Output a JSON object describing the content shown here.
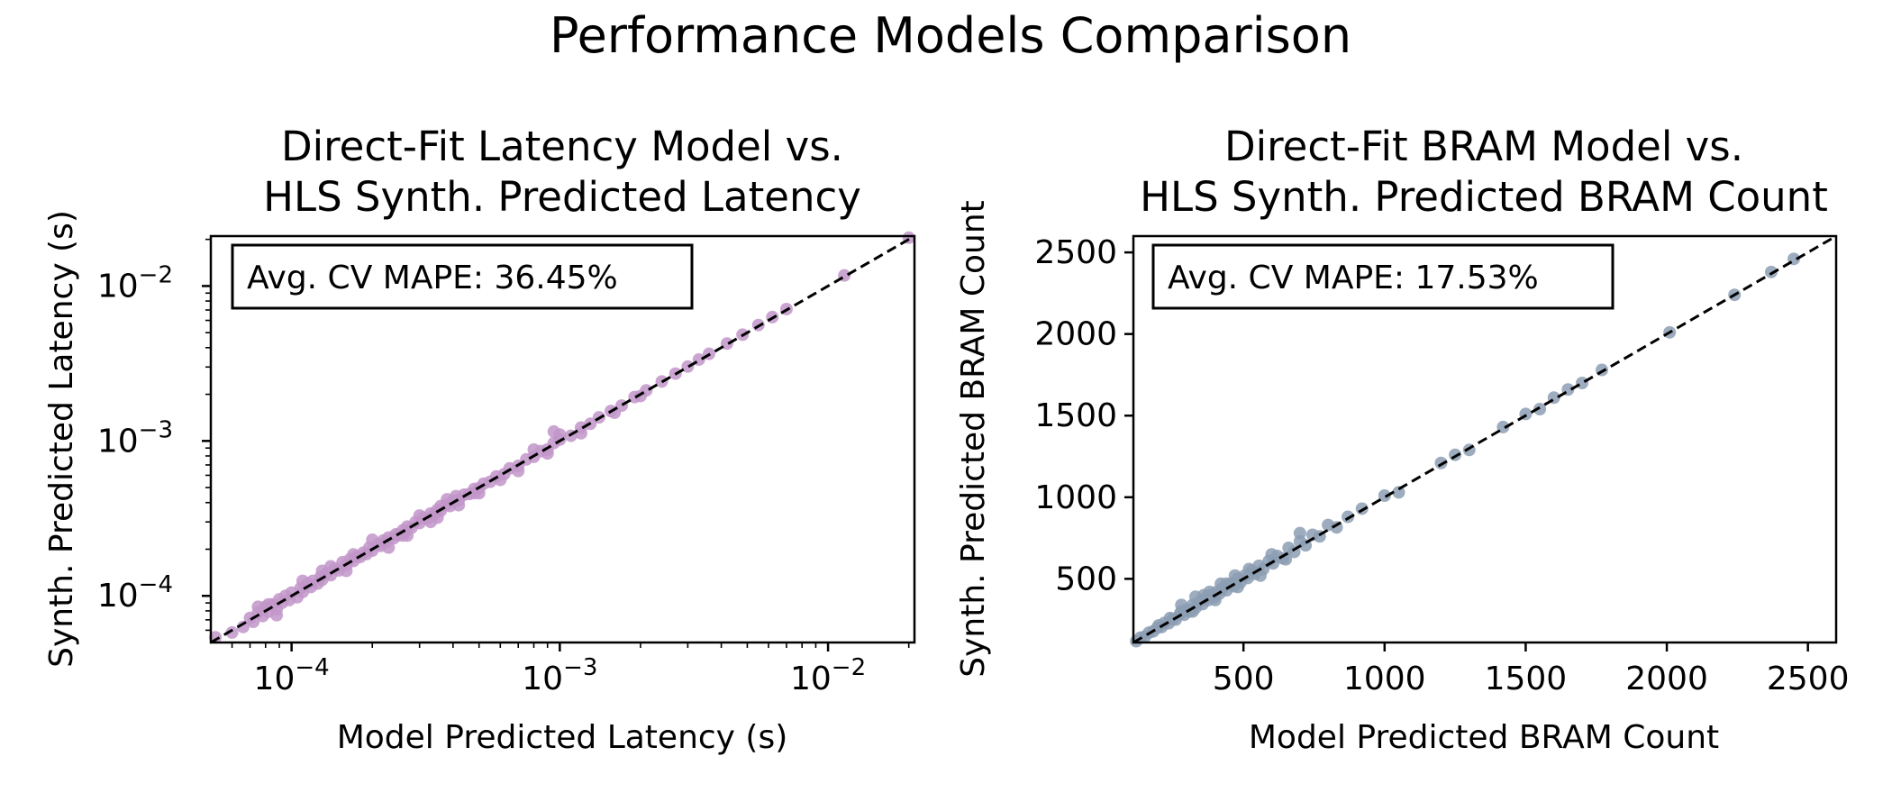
{
  "figure": {
    "suptitle": "Performance Models Comparison"
  },
  "chart_data": [
    {
      "type": "scatter",
      "title": [
        "Direct-Fit Latency Model vs.",
        "HLS Synth. Predicted Latency"
      ],
      "xlabel": "Model Predicted Latency (s)",
      "ylabel": "Synth. Predicted Latency (s)",
      "xscale": "log",
      "yscale": "log",
      "xlim": [
        5e-05,
        0.021
      ],
      "ylim": [
        5e-05,
        0.021
      ],
      "xticks": [
        {
          "value": 0.0001,
          "base": "10",
          "exp": "−4"
        },
        {
          "value": 0.001,
          "base": "10",
          "exp": "−3"
        },
        {
          "value": 0.01,
          "base": "10",
          "exp": "−2"
        }
      ],
      "yticks": [
        {
          "value": 0.0001,
          "base": "10",
          "exp": "−4"
        },
        {
          "value": 0.001,
          "base": "10",
          "exp": "−3"
        },
        {
          "value": 0.01,
          "base": "10",
          "exp": "−2"
        }
      ],
      "annotation": "Avg. CV MAPE: 36.45%",
      "reference_line": "y = x",
      "color": "#c295c9",
      "grid": false,
      "points": [
        [
          5.2e-05,
          5.4e-05
        ],
        [
          6e-05,
          5.8e-05
        ],
        [
          6.6e-05,
          6.3e-05
        ],
        [
          7e-05,
          7.2e-05
        ],
        [
          7.2e-05,
          6.8e-05
        ],
        [
          7.5e-05,
          7.8e-05
        ],
        [
          7.8e-05,
          7.4e-05
        ],
        [
          8e-05,
          8.5e-05
        ],
        [
          8.2e-05,
          7.9e-05
        ],
        [
          8.5e-05,
          8.8e-05
        ],
        [
          8.8e-05,
          8.2e-05
        ],
        [
          9e-05,
          9.5e-05
        ],
        [
          9.2e-05,
          9e-05
        ],
        [
          9.5e-05,
          0.0001
        ],
        [
          9.8e-05,
          9.4e-05
        ],
        [
          0.0001,
          0.000105
        ],
        [
          0.000105,
          9.8e-05
        ],
        [
          0.000108,
          0.000112
        ],
        [
          0.00011,
          0.000106
        ],
        [
          0.000115,
          0.00012
        ],
        [
          0.000118,
          0.000114
        ],
        [
          0.00012,
          0.000125
        ],
        [
          0.000125,
          0.00012
        ],
        [
          0.000128,
          0.000132
        ],
        [
          0.00013,
          0.000127
        ],
        [
          0.000135,
          0.00014
        ],
        [
          0.00014,
          0.000136
        ],
        [
          0.000145,
          0.00015
        ],
        [
          0.00015,
          0.000146
        ],
        [
          0.000155,
          0.000165
        ],
        [
          0.00016,
          0.000158
        ],
        [
          0.000165,
          0.000172
        ],
        [
          0.00017,
          0.000168
        ],
        [
          0.000175,
          0.00018
        ],
        [
          0.00018,
          0.000178
        ],
        [
          0.000185,
          0.00019
        ],
        [
          0.00019,
          0.000186
        ],
        [
          0.000195,
          0.000205
        ],
        [
          0.0002,
          0.000196
        ],
        [
          0.00021,
          0.000215
        ],
        [
          0.000215,
          0.00021
        ],
        [
          0.00022,
          0.000228
        ],
        [
          0.000225,
          0.000222
        ],
        [
          0.00023,
          0.000238
        ],
        [
          0.00024,
          0.000235
        ],
        [
          0.000245,
          0.00025
        ],
        [
          0.00025,
          0.000246
        ],
        [
          0.00026,
          0.000265
        ],
        [
          0.000265,
          0.00026
        ],
        [
          0.00027,
          0.00028
        ],
        [
          0.00028,
          0.000275
        ],
        [
          0.00029,
          0.0003
        ],
        [
          0.0003,
          0.000295
        ],
        [
          0.00031,
          0.00032
        ],
        [
          0.00032,
          0.000315
        ],
        [
          0.00033,
          0.00034
        ],
        [
          0.00034,
          0.000335
        ],
        [
          0.00035,
          0.00036
        ],
        [
          0.00036,
          0.000355
        ],
        [
          0.000375,
          0.000385
        ],
        [
          0.00039,
          0.00038
        ],
        [
          0.0004,
          0.00041
        ],
        [
          0.00042,
          0.000415
        ],
        [
          0.00044,
          0.00045
        ],
        [
          0.00046,
          0.000455
        ],
        [
          0.00048,
          0.00049
        ],
        [
          0.0005,
          0.000495
        ],
        [
          0.00052,
          0.00053
        ],
        [
          0.00055,
          0.000545
        ],
        [
          0.00058,
          0.00059
        ],
        [
          0.00062,
          0.00061
        ],
        [
          0.00065,
          0.000665
        ],
        [
          0.0007,
          0.00069
        ],
        [
          0.00075,
          0.00076
        ],
        [
          0.0008,
          0.00079
        ],
        [
          0.00085,
          0.00086
        ],
        [
          0.0009,
          0.00088
        ],
        [
          0.00095,
          0.00097
        ],
        [
          0.001,
          0.00102
        ],
        [
          0.0011,
          0.00108
        ],
        [
          0.0012,
          0.00122
        ],
        [
          0.0013,
          0.00129
        ],
        [
          0.0014,
          0.00142
        ],
        [
          0.00155,
          0.00156
        ],
        [
          0.0017,
          0.00169
        ],
        [
          0.0019,
          0.00192
        ],
        [
          0.0021,
          0.00212
        ],
        [
          0.0024,
          0.00242
        ],
        [
          0.0027,
          0.00272
        ],
        [
          0.003,
          0.00302
        ],
        [
          0.0033,
          0.00335
        ],
        [
          0.0036,
          0.00365
        ],
        [
          0.0042,
          0.00425
        ],
        [
          0.0048,
          0.00485
        ],
        [
          0.0055,
          0.0056
        ],
        [
          0.0062,
          0.0063
        ],
        [
          0.007,
          0.0071
        ],
        [
          0.0115,
          0.0117
        ],
        [
          0.02,
          0.0205
        ],
        [
          8.8e-05,
          7.5e-05
        ],
        [
          0.00011,
          0.000125
        ],
        [
          0.00014,
          0.000155
        ],
        [
          0.00016,
          0.000145
        ],
        [
          0.0002,
          0.00023
        ],
        [
          0.00023,
          0.000205
        ],
        [
          0.00027,
          0.000245
        ],
        [
          0.0003,
          0.00033
        ],
        [
          0.00033,
          0.0003
        ],
        [
          0.00038,
          0.00042
        ],
        [
          0.00042,
          0.000385
        ],
        [
          0.0005,
          0.00046
        ],
        [
          0.0006,
          0.00056
        ],
        [
          0.0007,
          0.00064
        ],
        [
          0.0008,
          0.00088
        ],
        [
          0.0009,
          0.00083
        ],
        [
          0.001,
          0.0011
        ],
        [
          0.0012,
          0.00112
        ],
        [
          0.0016,
          0.00152
        ],
        [
          0.002,
          0.00195
        ],
        [
          0.00013,
          0.000145
        ],
        [
          0.00017,
          0.000185
        ],
        [
          0.00026,
          0.000245
        ],
        [
          0.00036,
          0.00038
        ],
        [
          0.00048,
          0.00046
        ],
        [
          7.5e-05,
          8.5e-05
        ],
        [
          8.2e-05,
          8.8e-05
        ],
        [
          0.00035,
          0.00032
        ],
        [
          0.00041,
          0.00044
        ],
        [
          0.00095,
          0.00115
        ]
      ]
    },
    {
      "type": "scatter",
      "title": [
        "Direct-Fit BRAM Model vs.",
        "HLS Synth. Predicted BRAM Count"
      ],
      "xlabel": "Model Predicted BRAM Count",
      "ylabel": "Synth. Predicted BRAM Count",
      "xscale": "linear",
      "yscale": "linear",
      "xlim": [
        110,
        2600
      ],
      "ylim": [
        110,
        2600
      ],
      "xticks": [
        500,
        1000,
        1500,
        2000,
        2500
      ],
      "yticks": [
        500,
        1000,
        1500,
        2000,
        2500
      ],
      "annotation": "Avg. CV MAPE: 17.53%",
      "reference_line": "y = x",
      "color": "#8c9db3",
      "grid": false,
      "points": [
        [
          120,
          118
        ],
        [
          135,
          140
        ],
        [
          150,
          145
        ],
        [
          165,
          170
        ],
        [
          180,
          178
        ],
        [
          195,
          200
        ],
        [
          210,
          205
        ],
        [
          220,
          230
        ],
        [
          235,
          228
        ],
        [
          250,
          255
        ],
        [
          260,
          250
        ],
        [
          275,
          285
        ],
        [
          290,
          280
        ],
        [
          300,
          310
        ],
        [
          310,
          300
        ],
        [
          320,
          340
        ],
        [
          330,
          322
        ],
        [
          345,
          360
        ],
        [
          355,
          345
        ],
        [
          365,
          380
        ],
        [
          375,
          370
        ],
        [
          385,
          400
        ],
        [
          395,
          385
        ],
        [
          405,
          420
        ],
        [
          415,
          410
        ],
        [
          425,
          440
        ],
        [
          440,
          430
        ],
        [
          455,
          470
        ],
        [
          465,
          455
        ],
        [
          480,
          500
        ],
        [
          490,
          480
        ],
        [
          505,
          520
        ],
        [
          515,
          505
        ],
        [
          530,
          550
        ],
        [
          540,
          530
        ],
        [
          555,
          580
        ],
        [
          570,
          560
        ],
        [
          590,
          610
        ],
        [
          605,
          595
        ],
        [
          620,
          640
        ],
        [
          640,
          625
        ],
        [
          660,
          690
        ],
        [
          680,
          665
        ],
        [
          700,
          730
        ],
        [
          720,
          705
        ],
        [
          745,
          770
        ],
        [
          770,
          760
        ],
        [
          800,
          830
        ],
        [
          830,
          815
        ],
        [
          870,
          880
        ],
        [
          920,
          930
        ],
        [
          1000,
          1010
        ],
        [
          1050,
          1030
        ],
        [
          1200,
          1210
        ],
        [
          1250,
          1260
        ],
        [
          1300,
          1290
        ],
        [
          1420,
          1430
        ],
        [
          1500,
          1510
        ],
        [
          1550,
          1540
        ],
        [
          1600,
          1610
        ],
        [
          1650,
          1660
        ],
        [
          1700,
          1700
        ],
        [
          1770,
          1780
        ],
        [
          2010,
          2010
        ],
        [
          2240,
          2240
        ],
        [
          2370,
          2380
        ],
        [
          2450,
          2460
        ],
        [
          200,
          215
        ],
        [
          240,
          260
        ],
        [
          280,
          300
        ],
        [
          320,
          300
        ],
        [
          360,
          400
        ],
        [
          400,
          370
        ],
        [
          440,
          470
        ],
        [
          480,
          450
        ],
        [
          520,
          560
        ],
        [
          560,
          520
        ],
        [
          600,
          650
        ],
        [
          650,
          620
        ],
        [
          700,
          780
        ],
        [
          280,
          340
        ],
        [
          330,
          390
        ],
        [
          420,
          470
        ],
        [
          380,
          420
        ],
        [
          470,
          520
        ]
      ]
    }
  ]
}
